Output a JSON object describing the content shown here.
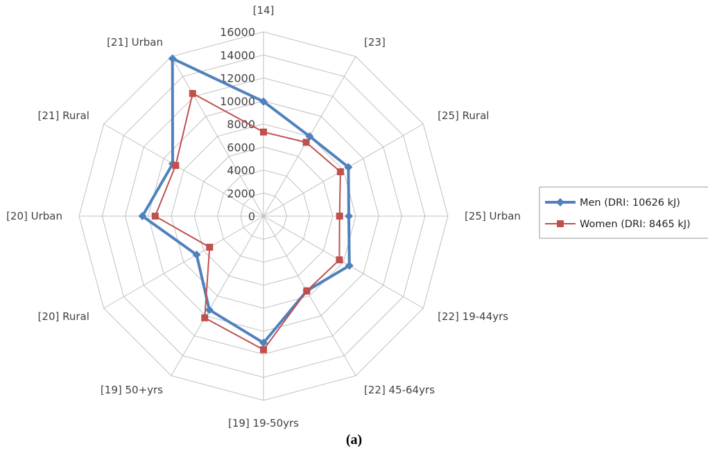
{
  "chart_data": {
    "type": "radar",
    "title": "",
    "categories": [
      "[14]",
      "[23]",
      "[25] Rural",
      "[25] Urban",
      "[22] 19-44yrs",
      "[22] 45-64yrs",
      "[19]  19-50yrs",
      "[19]  50+yrs",
      "[20] Rural",
      "[20] Urban",
      "[21] Rural",
      "[21] Urban"
    ],
    "rlim": [
      0,
      16000
    ],
    "ticks": [
      "0",
      "2000",
      "4000",
      "6000",
      "8000",
      "10000",
      "12000",
      "14000",
      "16000"
    ],
    "tick_values": [
      0,
      2000,
      4000,
      6000,
      8000,
      10000,
      12000,
      14000,
      16000
    ],
    "grid": true,
    "legend_position": "right",
    "series": [
      {
        "name": "Men (DRI: 10626 kJ)",
        "color": "#4F81BD",
        "marker": "diamond",
        "values": [
          9950,
          8000,
          8500,
          7400,
          8600,
          7500,
          11000,
          9400,
          6700,
          10500,
          9100,
          15800
        ]
      },
      {
        "name": "Women (DRI: 8465 kJ)",
        "color": "#C0504D",
        "marker": "square",
        "values": [
          7300,
          7400,
          7700,
          6600,
          7600,
          7500,
          11600,
          10200,
          5400,
          9400,
          8800,
          12300
        ]
      }
    ]
  },
  "caption": "(a)"
}
